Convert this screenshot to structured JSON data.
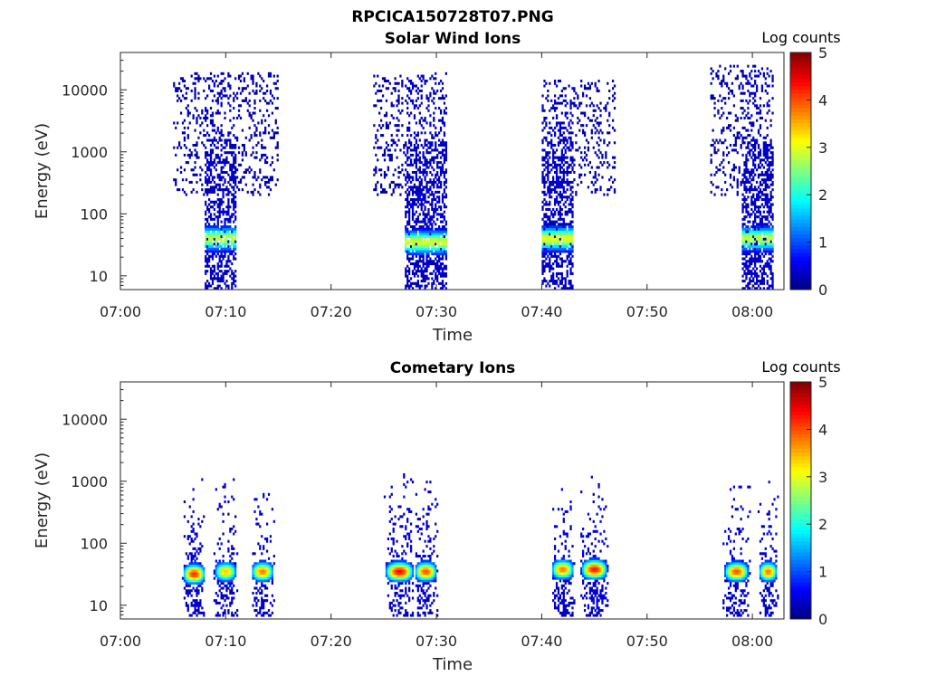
{
  "figure_title": "RPCICA150728T07.PNG",
  "chart_data": [
    {
      "type": "heatmap",
      "title": "Solar Wind Ions",
      "xlabel": "Time",
      "ylabel": "Energy (eV)",
      "y_scale": "log",
      "ylim": [
        6,
        40000
      ],
      "xlim": [
        "07:00",
        "08:03"
      ],
      "x_ticks": [
        "07:00",
        "07:10",
        "07:20",
        "07:30",
        "07:40",
        "07:50",
        "08:00"
      ],
      "y_ticks": [
        "10",
        "100",
        "1000",
        "10000"
      ],
      "colorbar": {
        "label": "Log counts",
        "range": [
          0,
          5
        ],
        "ticks": [
          "0",
          "1",
          "2",
          "3",
          "4",
          "5"
        ],
        "colormap": "jet"
      },
      "grid": false,
      "bursts": [
        {
          "start": "07:05",
          "end": "07:15",
          "core_start": "07:08",
          "core_end": "07:11",
          "peak_energy_eV": 40,
          "peak_log_counts": 2.8,
          "sparse_up_to_eV": 20000
        },
        {
          "start": "07:24",
          "end": "07:31",
          "core_start": "07:27",
          "core_end": "07:31",
          "peak_energy_eV": 35,
          "peak_log_counts": 2.9,
          "sparse_up_to_eV": 20000
        },
        {
          "start": "07:40",
          "end": "07:47",
          "core_start": "07:40",
          "core_end": "07:43",
          "peak_energy_eV": 40,
          "peak_log_counts": 3.0,
          "sparse_up_to_eV": 15000
        },
        {
          "start": "07:56",
          "end": "08:02",
          "core_start": "07:59",
          "core_end": "08:02",
          "peak_energy_eV": 40,
          "peak_log_counts": 2.8,
          "sparse_up_to_eV": 25000
        }
      ]
    },
    {
      "type": "heatmap",
      "title": "Cometary Ions",
      "xlabel": "Time",
      "ylabel": "Energy (eV)",
      "y_scale": "log",
      "ylim": [
        6,
        40000
      ],
      "xlim": [
        "07:00",
        "08:03"
      ],
      "x_ticks": [
        "07:00",
        "07:10",
        "07:20",
        "07:30",
        "07:40",
        "07:50",
        "08:00"
      ],
      "y_ticks": [
        "10",
        "100",
        "1000",
        "10000"
      ],
      "colorbar": {
        "label": "Log counts",
        "range": [
          0,
          5
        ],
        "ticks": [
          "0",
          "1",
          "2",
          "3",
          "4",
          "5"
        ],
        "colormap": "jet"
      },
      "grid": false,
      "blobs": [
        {
          "center": "07:07",
          "half_width_min": 1.2,
          "peak_energy_eV": 32,
          "peak_log_counts": 4.2
        },
        {
          "center": "07:10",
          "half_width_min": 1.2,
          "peak_energy_eV": 35,
          "peak_log_counts": 3.4
        },
        {
          "center": "07:13.5",
          "half_width_min": 1.2,
          "peak_energy_eV": 35,
          "peak_log_counts": 3.8
        },
        {
          "center": "07:26.5",
          "half_width_min": 1.5,
          "peak_energy_eV": 35,
          "peak_log_counts": 4.4
        },
        {
          "center": "07:29",
          "half_width_min": 1.2,
          "peak_energy_eV": 35,
          "peak_log_counts": 4.0
        },
        {
          "center": "07:42",
          "half_width_min": 1.2,
          "peak_energy_eV": 38,
          "peak_log_counts": 3.8
        },
        {
          "center": "07:45",
          "half_width_min": 1.4,
          "peak_energy_eV": 38,
          "peak_log_counts": 4.3
        },
        {
          "center": "07:58.5",
          "half_width_min": 1.3,
          "peak_energy_eV": 35,
          "peak_log_counts": 4.0
        },
        {
          "center": "08:01.5",
          "half_width_min": 1.0,
          "peak_energy_eV": 35,
          "peak_log_counts": 3.8
        }
      ],
      "sparse_up_to_eV": 1300
    }
  ]
}
